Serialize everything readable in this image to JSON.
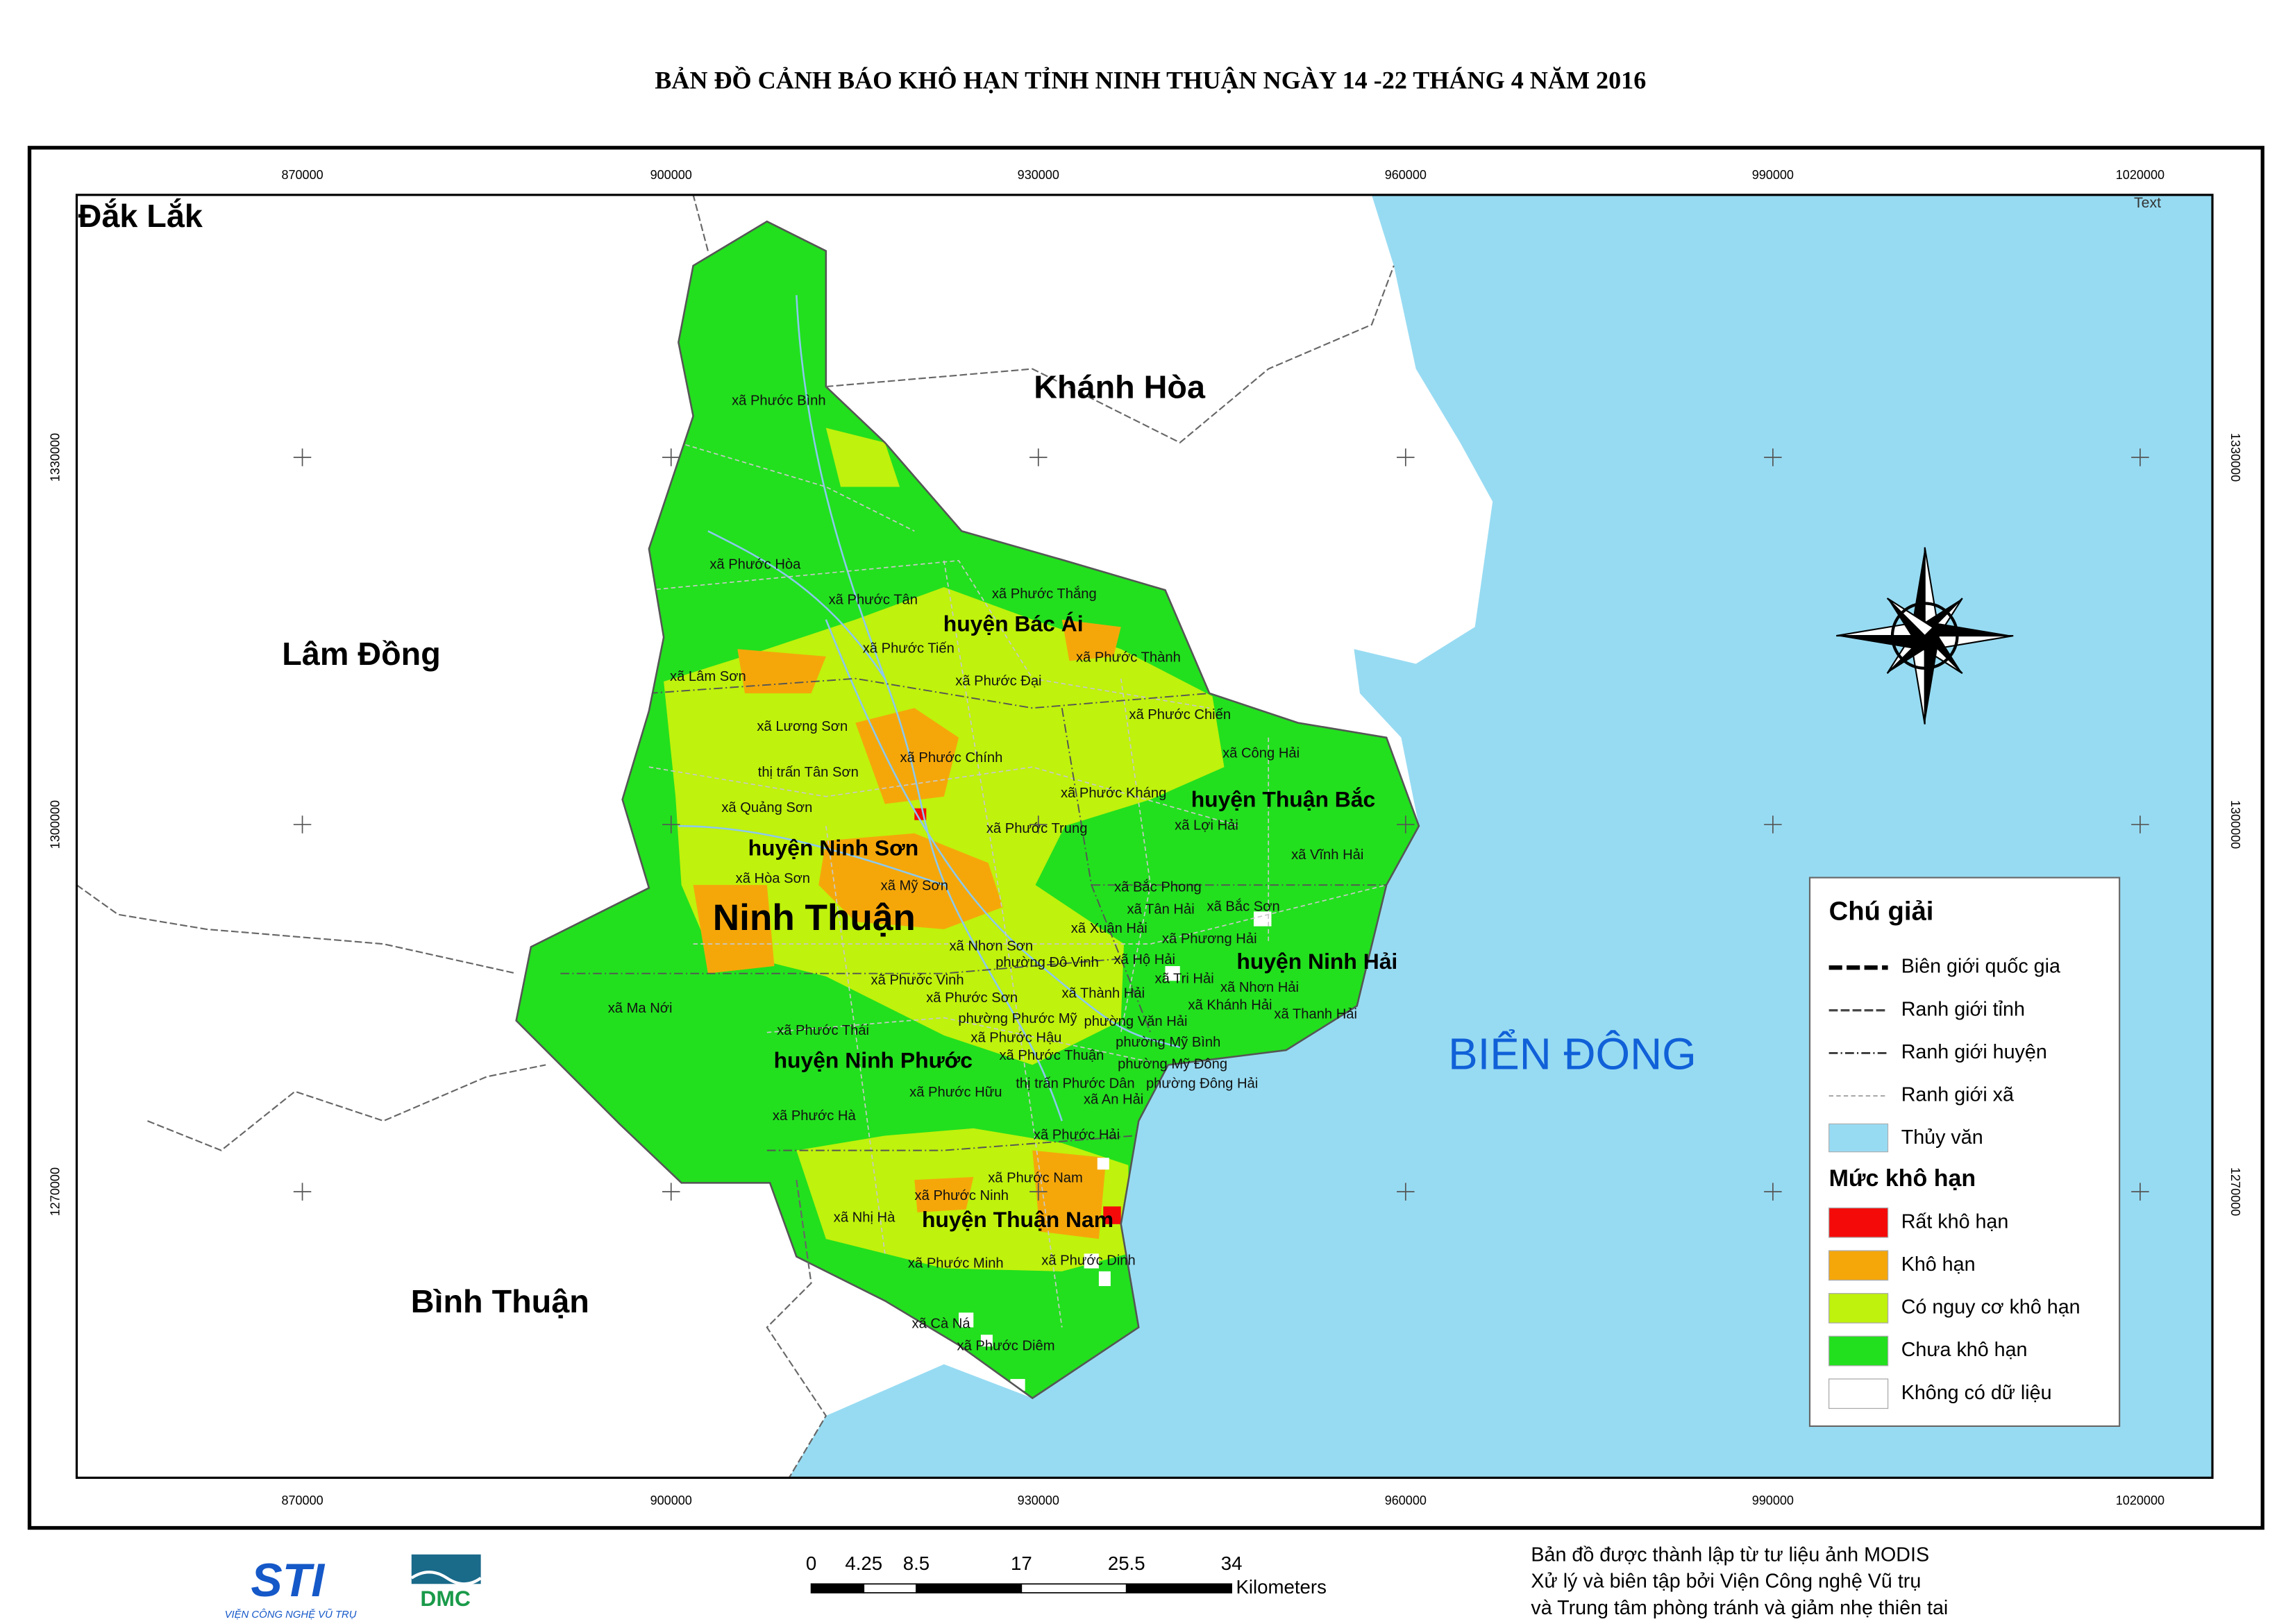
{
  "title": "BẢN ĐỒ CẢNH BÁO KHÔ HẠN TỈNH NINH THUẬN NGÀY 14 -22 THÁNG 4 NĂM 2016",
  "grid": {
    "x_labels": [
      "870000",
      "900000",
      "930000",
      "960000",
      "990000",
      "1020000"
    ],
    "y_labels": [
      "1330000",
      "1300000",
      "1270000"
    ]
  },
  "text_marker": "Text",
  "neighbors": [
    "Đắk Lắk",
    "Khánh Hòa",
    "Lâm Đồng",
    "Bình Thuận"
  ],
  "province": "Ninh Thuận",
  "sea": "BIỂN ĐÔNG",
  "districts": [
    "huyện Bác Ái",
    "huyện Thuận Bắc",
    "huyện Ninh Sơn",
    "huyện Ninh Hải",
    "huyện Ninh Phước",
    "huyện Thuận Nam"
  ],
  "communes": [
    "xã Phước Bình",
    "xã Phước Hòa",
    "xã Phước Tân",
    "xã Phước Thắng",
    "xã Phước Tiến",
    "xã Phước Thành",
    "xã Lâm Sơn",
    "xã Phước Đại",
    "xã Lương Sơn",
    "xã Phước Chiến",
    "thị trấn Tân Sơn",
    "xã Phước Chính",
    "xã Công Hải",
    "xã Phước Kháng",
    "xã Quảng Sơn",
    "xã Phước Trung",
    "xã Lợi Hải",
    "xã Vĩnh Hải",
    "xã Hòa Sơn",
    "xã Mỹ Sơn",
    "xã Bắc Phong",
    "xã Bắc Sơn",
    "xã Tân Hải",
    "xã Xuân Hải",
    "xã Phương Hải",
    "xã Nhơn Sơn",
    "phường Đô Vinh",
    "xã Hộ Hải",
    "xã Phước Vinh",
    "xã Tri Hải",
    "xã Nhơn Hải",
    "xã Ma Nới",
    "xã Phước Sơn",
    "xã Thành Hải",
    "xã Khánh Hải",
    "xã Thanh Hải",
    "phường Phước Mỹ",
    "phường Văn Hải",
    "xã Phước Thái",
    "xã Phước Hậu",
    "phường Mỹ Bình",
    "xã Phước Thuận",
    "phường Mỹ Đông",
    "thị trấn Phước Dân",
    "phường Đông Hải",
    "xã Phước Hữu",
    "xã An Hải",
    "xã Phước Hà",
    "xã Phước Hải",
    "xã Phước Nam",
    "xã Phước Ninh",
    "xã Nhị Hà",
    "xã Phước Minh",
    "xã Phước Dinh",
    "xã Cà Ná",
    "xã Phước Diêm"
  ],
  "legend": {
    "title": "Chú giải",
    "boundaries": [
      "Biên giới quốc gia",
      "Ranh giới tỉnh",
      "Ranh giới huyện",
      "Ranh giới xã"
    ],
    "water": {
      "label": "Thủy văn",
      "color": "#97dbf2"
    },
    "levels_title": "Mức khô hạn",
    "levels": [
      {
        "label": "Rất khô hạn",
        "color": "#f50a0a"
      },
      {
        "label": "Khô hạn",
        "color": "#f5a70a"
      },
      {
        "label": "Có nguy cơ khô hạn",
        "color": "#bff20c"
      },
      {
        "label": "Chưa khô hạn",
        "color": "#22e01e"
      },
      {
        "label": "Không có dữ liệu",
        "color": "#ffffff"
      }
    ]
  },
  "scale_bar": {
    "values": [
      0,
      4.25,
      8.5,
      17,
      25.5,
      34
    ],
    "unit": "Kilometers"
  },
  "logos": {
    "sti": "STI",
    "sti_caption": "VIỆN CÔNG NGHỆ VŨ TRỤ",
    "dmc": "DMC"
  },
  "footer": [
    "Bản đồ được thành lập từ tư liệu ảnh MODIS",
    "Xử lý và biên tập bởi Viện Công nghệ Vũ trụ",
    "và Trung tâm phòng tránh và giảm nhẹ thiên tai"
  ]
}
